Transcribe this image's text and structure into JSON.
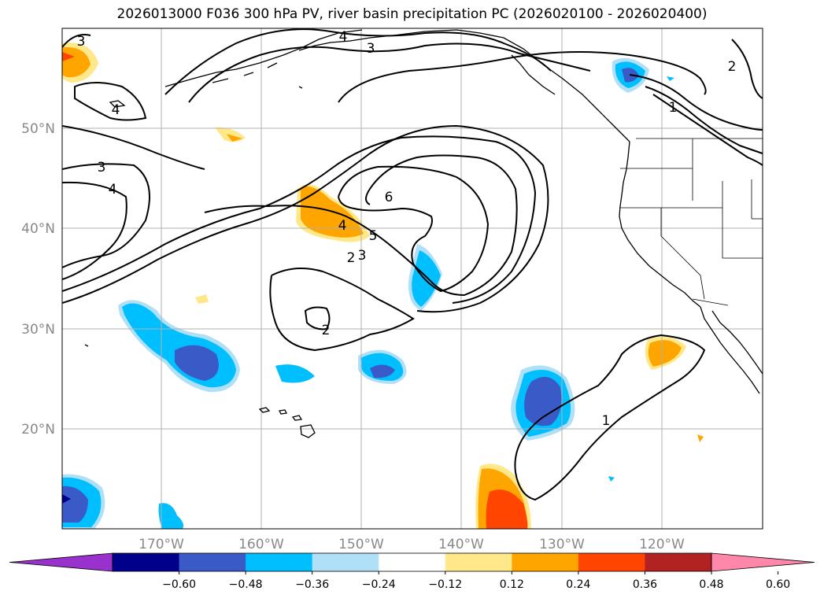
{
  "title": "2026013000 F036 300 hPa PV, river basin precipitation PC (2026020100 - 2026020400)",
  "lat_labels": [
    "50°N",
    "40°N",
    "30°N",
    "20°N"
  ],
  "lon_labels": [
    "170°W",
    "160°W",
    "150°W",
    "140°W",
    "130°W",
    "120°W"
  ],
  "contour_labels": [
    "3",
    "4",
    "3",
    "4",
    "3",
    "4",
    "4",
    "5",
    "2",
    "3",
    "6",
    "2",
    "1",
    "1",
    "2"
  ],
  "colorbar": {
    "ticks": [
      "−0.60",
      "−0.48",
      "−0.36",
      "−0.24",
      "−0.12",
      "0.12",
      "0.24",
      "0.36",
      "0.48",
      "0.60"
    ],
    "colors": [
      "#9932cc",
      "#00008b",
      "#3a5bc7",
      "#00bfff",
      "#b0e0f8",
      "#ffffff",
      "#ffe88a",
      "#ffa500",
      "#ff4500",
      "#b22222",
      "#ff88aa"
    ]
  },
  "chart_data": {
    "type": "map",
    "projection": "lat-lon",
    "lat_range": [
      10,
      60
    ],
    "lon_range": [
      -180,
      -110
    ],
    "variables": [
      "300 hPa PV",
      "river basin precipitation PC"
    ],
    "pv_contour_levels": [
      1,
      2,
      3,
      4,
      5,
      6
    ],
    "pc_levels": [
      -0.6,
      -0.48,
      -0.36,
      -0.24,
      -0.12,
      0.12,
      0.24,
      0.36,
      0.48,
      0.6
    ]
  }
}
